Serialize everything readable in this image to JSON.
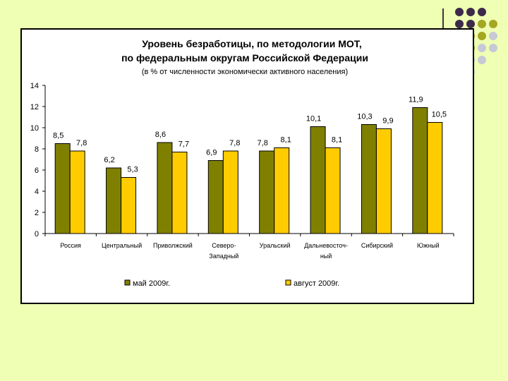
{
  "colors": {
    "background": "#efffb4",
    "series_may": "#808000",
    "series_aug": "#ffcc00",
    "dot_purple": "#3d2a4a",
    "dot_olive": "#a5a622",
    "dot_grey": "#c8c8d6"
  },
  "chart_data": {
    "type": "bar",
    "title": "Уровень безработицы, по методологии МОТ,",
    "title_line2": "по федеральным округам Российской Федерации",
    "subtitle": "(в % от численности экономически активного населения)",
    "categories": [
      [
        "Россия"
      ],
      [
        "Центральный"
      ],
      [
        "Приволжский"
      ],
      [
        "Северо-",
        "Западный"
      ],
      [
        "Уральский"
      ],
      [
        "Дальневосточ-",
        "ный"
      ],
      [
        "Сибирский"
      ],
      [
        "Южный"
      ]
    ],
    "series": [
      {
        "name": "май 2009г.",
        "values": [
          8.5,
          6.2,
          8.6,
          6.9,
          7.8,
          10.1,
          10.3,
          11.9
        ],
        "labels": [
          "8,5",
          "6,2",
          "8,6",
          "6,9",
          "7,8",
          "10,1",
          "10,3",
          "11,9"
        ]
      },
      {
        "name": "август 2009г.",
        "values": [
          7.8,
          5.3,
          7.7,
          7.8,
          8.1,
          8.1,
          9.9,
          10.5
        ],
        "labels": [
          "7,8",
          "5,3",
          "7,7",
          "7,8",
          "8,1",
          "8,1",
          "9,9",
          "10,5"
        ]
      }
    ],
    "yticks": [
      "0",
      "2",
      "4",
      "6",
      "8",
      "10",
      "12",
      "14"
    ],
    "ylim": [
      0,
      14
    ],
    "grid": false,
    "legend_position": "bottom"
  }
}
